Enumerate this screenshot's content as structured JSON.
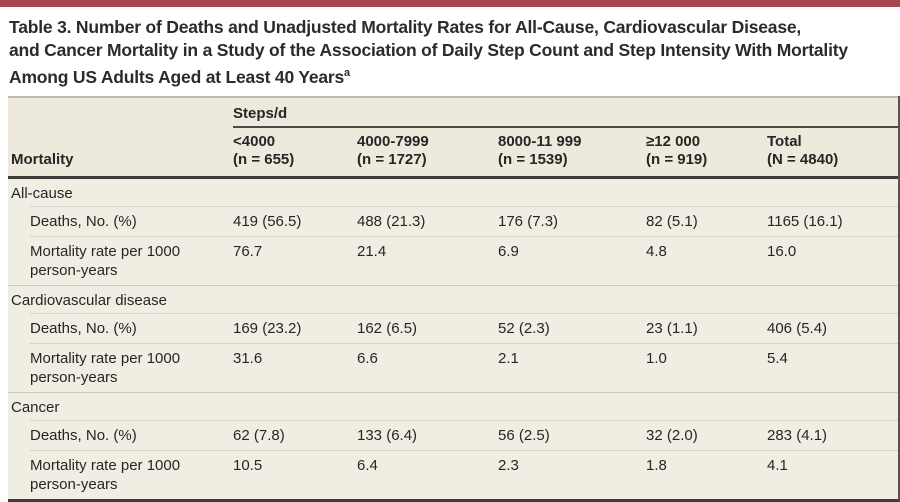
{
  "title": {
    "line1": "Table 3. Number of Deaths and Unadjusted Mortality Rates for All-Cause, Cardiovascular Disease,",
    "line2": "and Cancer Mortality in a Study of the Association of Daily Step Count and Step Intensity With Mortality",
    "line3": "Among US Adults Aged at Least 40 Years",
    "footnote_marker": "a"
  },
  "table": {
    "spanner": "Steps/d",
    "row_header": "Mortality",
    "columns": [
      {
        "range": "<4000",
        "n": "(n = 655)"
      },
      {
        "range": "4000-7999",
        "n": "(n = 1727)"
      },
      {
        "range": "8000-11 999",
        "n": "(n = 1539)"
      },
      {
        "range": "≥12 000",
        "n": "(n = 919)"
      },
      {
        "range": "Total",
        "n": "(N = 4840)"
      }
    ],
    "sections": [
      {
        "name": "All-cause",
        "rows": [
          {
            "label": "Deaths, No. (%)",
            "values": [
              "419 (56.5)",
              "488 (21.3)",
              "176 (7.3)",
              "82 (5.1)",
              "1165 (16.1)"
            ]
          },
          {
            "label": "Mortality rate per 1000 person-years",
            "values": [
              "76.7",
              "21.4",
              "6.9",
              "4.8",
              "16.0"
            ]
          }
        ]
      },
      {
        "name": "Cardiovascular disease",
        "rows": [
          {
            "label": "Deaths, No. (%)",
            "values": [
              "169 (23.2)",
              "162 (6.5)",
              "52 (2.3)",
              "23 (1.1)",
              "406 (5.4)"
            ]
          },
          {
            "label": "Mortality rate per 1000 person-years",
            "values": [
              "31.6",
              "6.6",
              "2.1",
              "1.0",
              "5.4"
            ]
          }
        ]
      },
      {
        "name": "Cancer",
        "rows": [
          {
            "label": "Deaths, No. (%)",
            "values": [
              "62 (7.8)",
              "133 (6.4)",
              "56 (2.5)",
              "32 (2.0)",
              "283 (4.1)"
            ]
          },
          {
            "label": "Mortality rate per 1000 person-years",
            "values": [
              "10.5",
              "6.4",
              "2.3",
              "1.8",
              "4.1"
            ]
          }
        ]
      }
    ]
  },
  "colors": {
    "accent_red": "#a8444b",
    "table_background": "#f0ede2",
    "header_background": "#edeadd",
    "dark_rule": "#3d3c3a",
    "light_rule": "#d8d4c5"
  }
}
